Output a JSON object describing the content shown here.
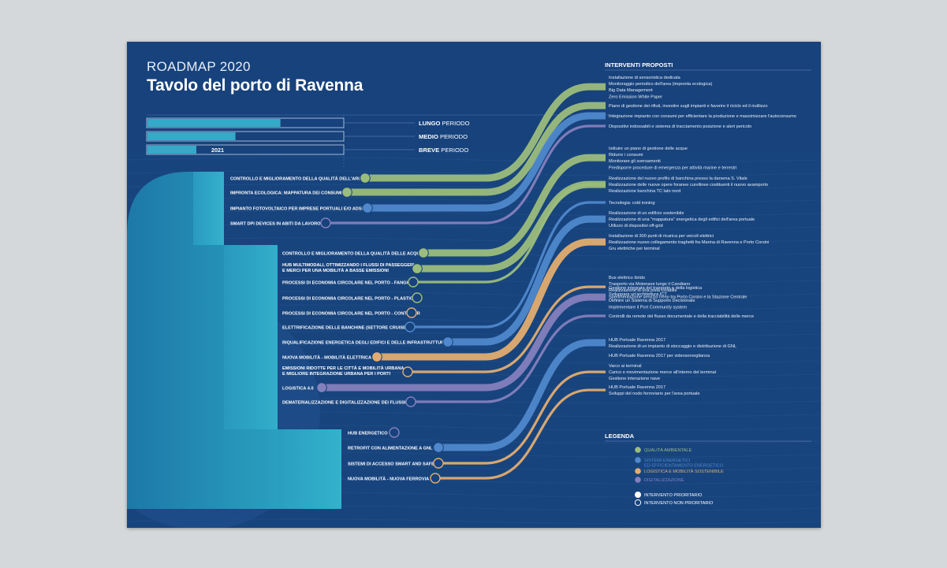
{
  "header": {
    "subtitle": "ROADMAP 2020",
    "title": "Tavolo del porto di Ravenna"
  },
  "periods": [
    {
      "strong": "LUNGO",
      "rest": " PERIODO",
      "fill": 0.68
    },
    {
      "strong": "MEDIO",
      "rest": " PERIODO",
      "fill": 0.45
    },
    {
      "strong": "BREVE",
      "rest": " PERIODO",
      "fill": 0.25,
      "year": "2021"
    }
  ],
  "colors": {
    "green": "#9bbd7c",
    "blue": "#4f88cc",
    "orange": "#e1ad6f",
    "purple": "#8480bd",
    "background": "#17427c",
    "teal": "#33a6c4"
  },
  "interventions_heading": "INTERVENTI PROPOSTI",
  "proposal_groups": [
    [
      "Installazione di sensoristica dedicata",
      "Monitoraggio periodico dell'area (impronta ecologica)",
      "Big Data Management",
      "Zero Emission White Paper"
    ],
    [
      "Piano di gestione dei rifiuti, investire sugli impianti e favorire il riciclo ed il riutilizzo"
    ],
    [
      "Integrazione impianto con consumi per efficientare la produzione e massimizzare l'autoconsumo"
    ],
    [
      "Dispositivi indossabili e sistema di tracciamento posizione e alert pericolo"
    ],
    [
      "Istituire un piano di gestione delle acque",
      "Ridurre i consumi",
      "Monitorare gli sversamenti",
      "Predisporre procedure di emergenza per attività marine e terrestri"
    ],
    [
      "Realizzazione del nuovo profilo di banchina presso la darsena S. Vitale",
      "Realizzazione delle nuove opere foranee curvilinee costituenti il nuovo avamporto",
      "Realizzazione banchina TC lato nord"
    ],
    [
      "Tecnologia: cold ironing"
    ],
    [
      "Realizzazione di un edificio sostenibile",
      "Realizzazione di una \"mappatura\" energetica degli edifici dell'area portuale",
      "Utilizzo di dispositivi off-grid"
    ],
    [
      "Installazione di 300 punti di ricarica per veicoli elettrici",
      "Realizzazione nuovo collegamento traghetti fra Marina di Ravenna e Porto Corsini",
      "Gru elettriche per terminal"
    ],
    [
      "Bus elettrico ibrido",
      "Trasporto via Motonave lungo il Candiano",
      "Realizzazione di una pista ciclabile",
      "Sperimentazione servizio treno tra Porto Corsini e la Stazione Centrale"
    ],
    [
      "Gestione integrata del trasporto e della logistica",
      "Sviluppare un'architettura ICT",
      "Definire un Sistema di Supporto Decisionale",
      "Implementare il Port Community system"
    ],
    [
      "Controlli da remoto del flusso documentale e della tracciabilità delle merce"
    ],
    [
      "HUB Portuale Ravenna 2017",
      "Realizzazione di un impianto di stoccaggio e distribuzione di GNL"
    ],
    [
      "HUB Portuale Ravenna 2017 per videosorveglianza"
    ],
    [
      "Varco ai terminal",
      "Carico e movimentazione merce all'interno del terminal",
      "Gestione interazione nave"
    ],
    [
      "HUB Portuale Ravenna 2017",
      "Sviluppi del nodo ferroviario per l'area portuale"
    ]
  ],
  "initiatives": [
    {
      "label": "CONTROLLO E MIGLIORAMENTO DELLA QUALITÀ DELL'ARIA",
      "category": "green",
      "priority": true,
      "target": 0
    },
    {
      "label": "IMPRONTA ECOLOGICA: MAPPATURA DEI CONSUMI",
      "category": "green",
      "priority": true,
      "target": 1
    },
    {
      "label": "IMPIANTO FOTOVOLTAICO PER IMPRESE PORTUALI E/O ADSP",
      "category": "blue",
      "priority": true,
      "target": 2
    },
    {
      "label": "SMART DPI DEVICES IN ABITI DA LAVORO",
      "category": "purple",
      "priority": false,
      "target": 3
    },
    {
      "label": "CONTROLLO E MIGLIORAMENTO DELLA QUALITÀ DELLE ACQUE",
      "category": "green",
      "priority": true,
      "target": 4
    },
    {
      "label": "HUB MULTIMODALI, OTTIMIZZANDO I FLUSSI DI PASSEGGERI\nE MERCI PER UNA MOBILITÀ A BASSE EMISSIONI",
      "category": "green",
      "priority": true,
      "target": 5
    },
    {
      "label": "PROCESSI DI ECONOMIA CIRCOLARE NEL PORTO - FANGHI",
      "category": "green",
      "priority": false,
      "target": 5
    },
    {
      "label": "PROCESSI DI ECONOMIA CIRCOLARE NEL PORTO - PLASTICA",
      "category": "green",
      "priority": false,
      "target": null
    },
    {
      "label": "PROCESSI DI ECONOMIA CIRCOLARE NEL PORTO - CONTAINER",
      "category": "orange",
      "priority": false,
      "target": null
    },
    {
      "label": "ELETTRIFICAZIONE DELLE BANCHINE (SETTORE CRUISE)",
      "category": "blue",
      "priority": false,
      "target": 6
    },
    {
      "label": "RIQUALIFICAZIONE ENERGETICA DEGLI EDIFICI E DELLE INFRASTRUTTURE",
      "category": "blue",
      "priority": true,
      "target": 7
    },
    {
      "label": "NUOVA MOBILITÀ - MOBILITÀ ELETTRICA",
      "category": "orange",
      "priority": true,
      "target": 8
    },
    {
      "label": "EMISSIONI RIDOTTE PER LE CITTÀ E MOBILITÀ URBANA,\nE MIGLIORE INTEGRAZIONE URBANA PER I PORTI",
      "category": "orange",
      "priority": false,
      "target": 9
    },
    {
      "label": "LOGISTICA 4.0",
      "category": "purple",
      "priority": true,
      "target": 10
    },
    {
      "label": "DEMATERIALIZZAZIONE E DIGITALIZZAZIONE DEI FLUSSI",
      "category": "purple",
      "priority": false,
      "target": 11
    },
    {
      "label": "HUB ENERGETICO",
      "category": "purple",
      "priority": false,
      "target": null
    },
    {
      "label": "RETROFIT CON ALIMENTAZIONE A GNL",
      "category": "blue",
      "priority": true,
      "target": 12
    },
    {
      "label": "SISTEMI DI ACCESSO SMART AND SAFE",
      "category": "orange",
      "priority": false,
      "target": 14
    },
    {
      "label": "NUOVA MOBILITÀ - NUOVA FERROVIA",
      "category": "orange",
      "priority": false,
      "target": 15
    }
  ],
  "legend": {
    "title": "LEGENDA",
    "categories": [
      {
        "key": "green",
        "lines": [
          "QUALITÀ AMBIENTALE"
        ]
      },
      {
        "key": "blue",
        "lines": [
          "SISTEMI ENERGETICI",
          "ED EFFICIENTAMENTO ENERGETICO"
        ]
      },
      {
        "key": "orange",
        "lines": [
          "LOGISTICA E MOBILITÀ SOSTENIBILE"
        ]
      },
      {
        "key": "purple",
        "lines": [
          "DIGITALIZZAZIONE"
        ]
      }
    ],
    "priority_labels": [
      "INTERVENTO PRIORITARIO",
      "INTERVENTO NON PRIORITARIO"
    ]
  }
}
